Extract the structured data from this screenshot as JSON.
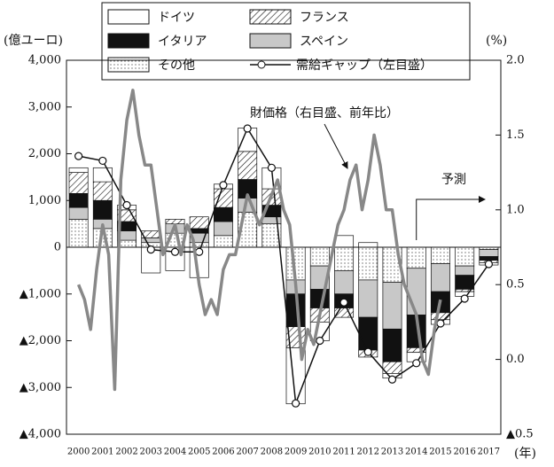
{
  "chart_data": {
    "type": "bar",
    "stacked": true,
    "y_unit": "(億ユーロ)",
    "y2_unit": "(%)",
    "x_unit": "(年)",
    "forecast_label": "予測",
    "forecast_from": "2014",
    "categories": [
      "2000",
      "2001",
      "2002",
      "2003",
      "2004",
      "2005",
      "2006",
      "2007",
      "2008",
      "2009",
      "2010",
      "2011",
      "2012",
      "2013",
      "2014",
      "2015",
      "2016",
      "2017"
    ],
    "ylim": [
      -4000,
      4000
    ],
    "yticks": [
      {
        "value": 4000,
        "label": "4,000"
      },
      {
        "value": 3000,
        "label": "3,000"
      },
      {
        "value": 2000,
        "label": "2,000"
      },
      {
        "value": 1000,
        "label": "1,000"
      },
      0,
      {
        "value": -1000,
        "label": "▲1,000"
      },
      {
        "value": -2000,
        "label": "▲2,000"
      },
      {
        "value": -3000,
        "label": "▲3,000"
      },
      {
        "value": -4000,
        "label": "▲4,000"
      }
    ],
    "y2lim": [
      -0.5,
      2.0
    ],
    "y2ticks": [
      {
        "value": 2.0,
        "label": "2.0"
      },
      {
        "value": 1.5,
        "label": "1.5"
      },
      {
        "value": 1.0,
        "label": "1.0"
      },
      {
        "value": 0.5,
        "label": "0.5"
      },
      {
        "value": 0.0,
        "label": "0.0"
      },
      {
        "value": -0.5,
        "label": "▲0.5"
      }
    ],
    "series": [
      {
        "name": "ドイツ",
        "color": "#ffffff",
        "values": [
          100,
          300,
          100,
          -550,
          -500,
          -650,
          100,
          500,
          450,
          -1200,
          -400,
          250,
          100,
          -100,
          -200,
          -100,
          -100,
          -50
        ]
      },
      {
        "name": "フランス",
        "color": "#ffffff",
        "pattern": "hatch",
        "values": [
          450,
          400,
          250,
          150,
          100,
          250,
          400,
          600,
          350,
          -450,
          -300,
          -200,
          -150,
          -250,
          -100,
          -150,
          -50,
          -50
        ]
      },
      {
        "name": "イタリア",
        "color": "#111111",
        "values": [
          300,
          400,
          200,
          0,
          0,
          100,
          300,
          400,
          250,
          -700,
          -400,
          -300,
          -700,
          -700,
          -700,
          -450,
          -300,
          -80
        ]
      },
      {
        "name": "スペイン",
        "color": "#c8c8c8",
        "values": [
          250,
          200,
          200,
          100,
          200,
          200,
          300,
          300,
          150,
          -300,
          -500,
          -500,
          -800,
          -1000,
          -1000,
          -600,
          -200,
          -150
        ]
      },
      {
        "name": "その他",
        "color": "#ffffff",
        "pattern": "dots",
        "values": [
          600,
          400,
          150,
          100,
          300,
          100,
          250,
          750,
          500,
          -700,
          -400,
          -500,
          -700,
          -750,
          -450,
          -350,
          -400,
          -50
        ]
      },
      {
        "name": "需給ギャップ（左目盛）",
        "type": "line",
        "color": "#111111",
        "values": [
          1950,
          1850,
          900,
          -50,
          -100,
          -100,
          1330,
          2540,
          1700,
          -3340,
          -2000,
          -1180,
          -2240,
          -2830,
          -2480,
          -1630,
          -1100,
          -360
        ]
      },
      {
        "name": "財価格（右目盛、前年比）",
        "type": "line",
        "axis": "y2",
        "color": "#888888",
        "x": [
          2000,
          2000.25,
          2000.5,
          2000.75,
          2001,
          2001.25,
          2001.5,
          2001.75,
          2002,
          2002.25,
          2002.5,
          2002.75,
          2003,
          2003.25,
          2003.5,
          2003.75,
          2004,
          2004.25,
          2004.5,
          2004.75,
          2005,
          2005.25,
          2005.5,
          2005.75,
          2006,
          2006.25,
          2006.5,
          2006.75,
          2007,
          2007.25,
          2007.5,
          2007.75,
          2008,
          2008.25,
          2008.5,
          2008.75,
          2009,
          2009.25,
          2009.5,
          2009.75,
          2010,
          2010.25,
          2010.5,
          2010.75,
          2011,
          2011.25,
          2011.5,
          2011.75,
          2012,
          2012.25,
          2012.5,
          2012.75,
          2013,
          2013.25,
          2013.5,
          2013.75,
          2014,
          2014.25,
          2014.5,
          2014.75,
          2015
        ],
        "values": [
          0.5,
          0.4,
          0.2,
          0.6,
          0.9,
          0.7,
          -0.2,
          1.2,
          1.6,
          1.8,
          1.5,
          1.3,
          1.3,
          1.0,
          0.7,
          0.8,
          0.9,
          0.7,
          0.9,
          0.8,
          0.5,
          0.3,
          0.4,
          0.3,
          0.6,
          0.7,
          0.7,
          0.9,
          1.1,
          1.0,
          0.9,
          1.0,
          1.1,
          1.2,
          1.0,
          0.9,
          0.5,
          0.0,
          0.2,
          0.1,
          0.3,
          0.5,
          0.7,
          0.9,
          1.0,
          1.2,
          1.3,
          1.0,
          1.2,
          1.5,
          1.3,
          1.0,
          1.0,
          0.7,
          0.5,
          0.4,
          0.3,
          0.0,
          -0.1,
          0.2,
          0.4
        ]
      }
    ]
  }
}
